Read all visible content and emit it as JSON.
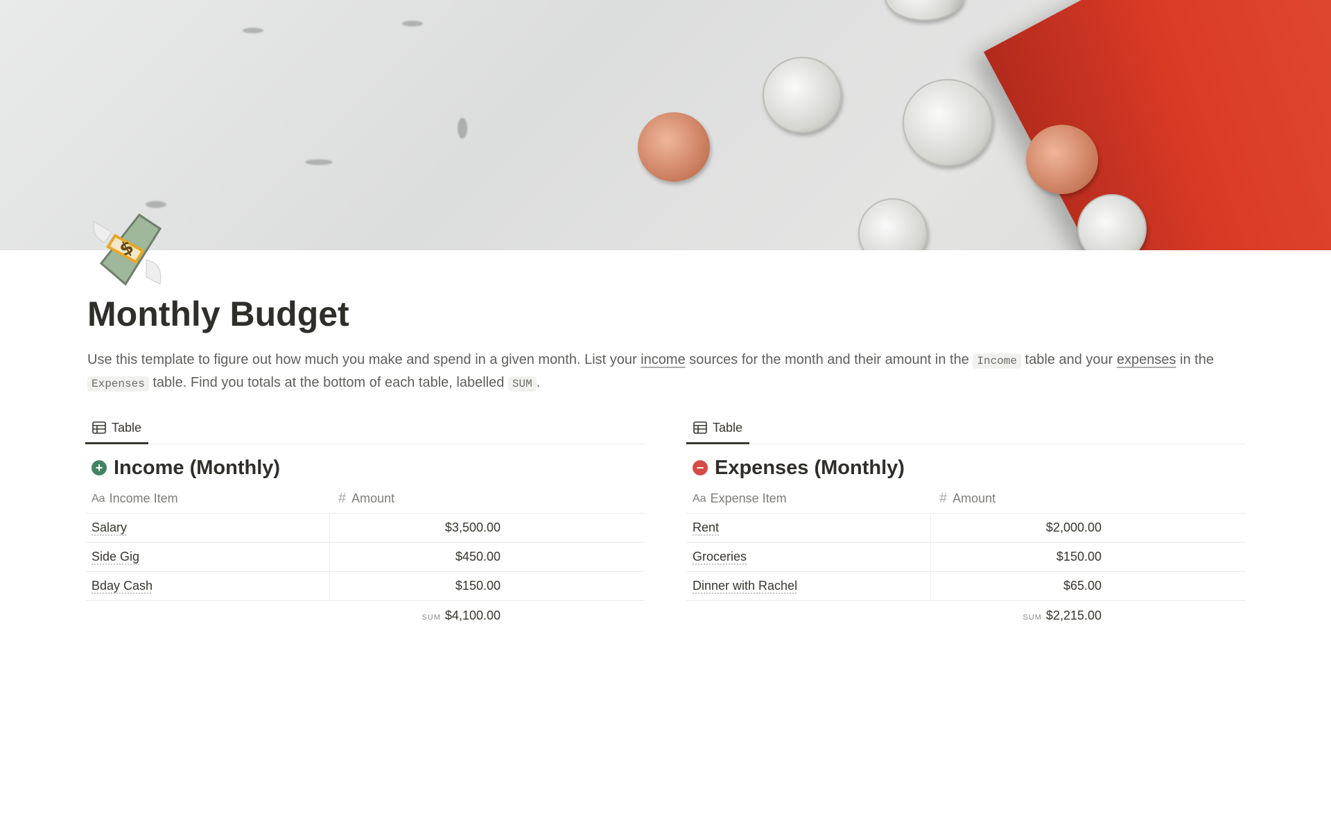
{
  "page": {
    "title": "Monthly Budget",
    "icon": "money-with-wings-emoji"
  },
  "description": {
    "p1": "Use this template to figure out how much you make and spend in a given month. List your ",
    "link_income": "income",
    "p2": " sources for the month and their amount in the ",
    "code_income": "Income",
    "p3": " table and your ",
    "link_expenses": "expenses",
    "p4": " in the ",
    "code_expenses": "Expenses",
    "p5": " table. Find you totals at the bottom of each table, labelled ",
    "code_sum": "SUM",
    "p6": "."
  },
  "income": {
    "view_tab": "Table",
    "title": "Income (Monthly)",
    "icon_color": "#448361",
    "columns": [
      "Income Item",
      "Amount"
    ],
    "rows": [
      {
        "item": "Salary",
        "amount": "$3,500.00"
      },
      {
        "item": "Side Gig",
        "amount": "$450.00"
      },
      {
        "item": "Bday Cash",
        "amount": "$150.00"
      }
    ],
    "sum_label": "SUM",
    "sum": "$4,100.00"
  },
  "expenses": {
    "view_tab": "Table",
    "title": "Expenses (Monthly)",
    "icon_color": "#d44c47",
    "columns": [
      "Expense Item",
      "Amount"
    ],
    "rows": [
      {
        "item": "Rent",
        "amount": "$2,000.00"
      },
      {
        "item": "Groceries",
        "amount": "$150.00"
      },
      {
        "item": "Dinner with Rachel",
        "amount": "$65.00"
      }
    ],
    "sum_label": "SUM",
    "sum": "$2,215.00"
  },
  "icons": {
    "title_col": "Aa",
    "number_col": "#"
  }
}
